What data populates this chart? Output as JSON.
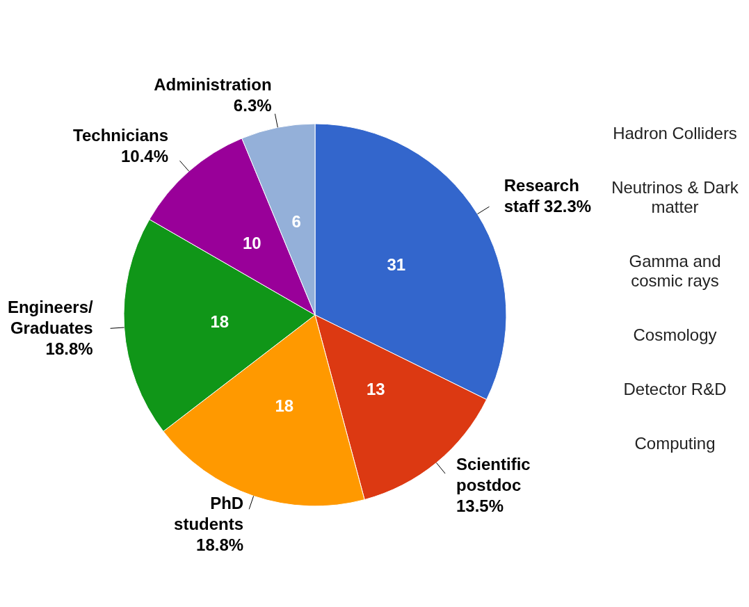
{
  "chart_data": {
    "type": "pie",
    "categories": [
      "Research staff 32.3%",
      "Scientific postdoc 13.5%",
      "PhD students 18.8%",
      "Engineers/Graduates 18.8%",
      "Technicians 10.4%",
      "Administration 6.3%"
    ],
    "values": [
      31,
      13,
      18,
      18,
      10,
      6
    ],
    "colors": [
      "#3366cc",
      "#dc3912",
      "#ff9900",
      "#109618",
      "#990099",
      "#94b0d9"
    ],
    "data_labels": true,
    "annotations": [
      "Hadron Colliders",
      "Neutrinos & Dark matter",
      "Gamma and cosmic rays",
      "Cosmology",
      "Detector R&D",
      "Computing"
    ]
  }
}
